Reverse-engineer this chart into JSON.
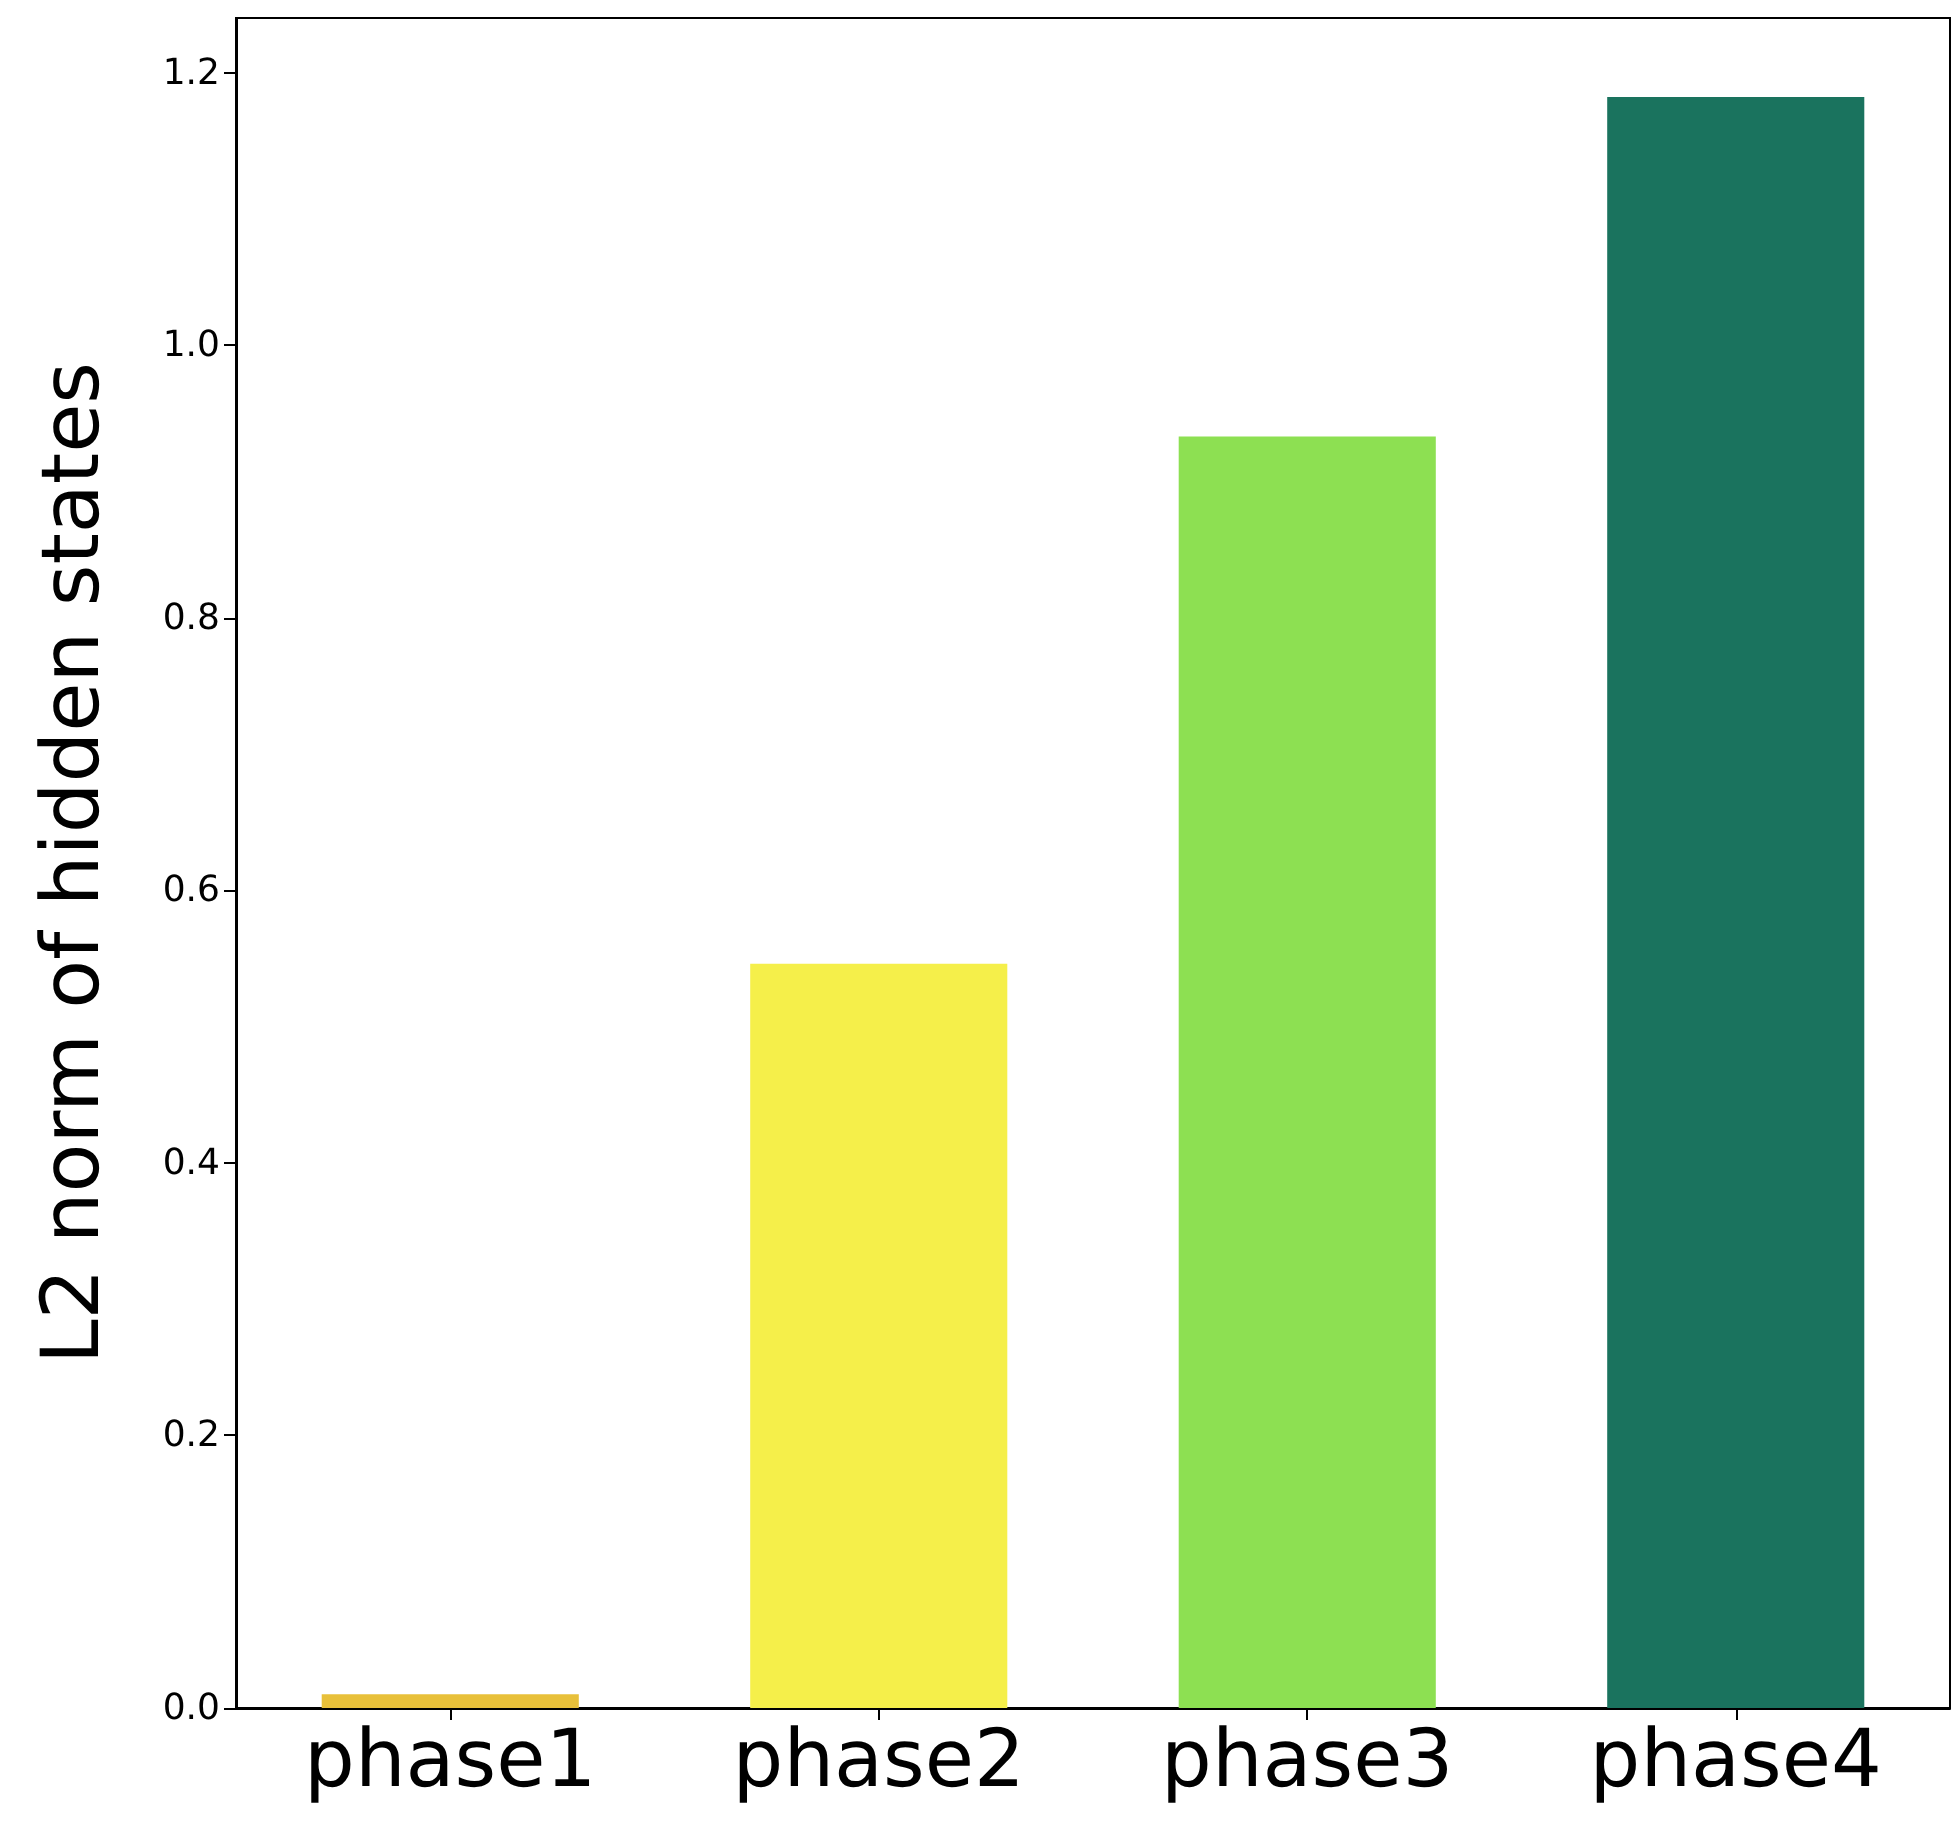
{
  "chart_data": {
    "type": "bar",
    "ylabel": "L2 norm of hidden states",
    "categories": [
      "phase1",
      "phase2",
      "phase3",
      "phase4"
    ],
    "values": [
      0.01,
      0.546,
      0.933,
      1.182
    ],
    "colors": [
      "#e8c03a",
      "#f5ef4a",
      "#8de052",
      "#1a735e"
    ],
    "ylim": [
      0,
      1.24
    ],
    "yticks": [
      {
        "value": 0,
        "label": "0.0"
      },
      0.2,
      0.4,
      0.6,
      0.8,
      {
        "value": 1,
        "label": "1.0"
      },
      1.2
    ],
    "grid": false
  }
}
